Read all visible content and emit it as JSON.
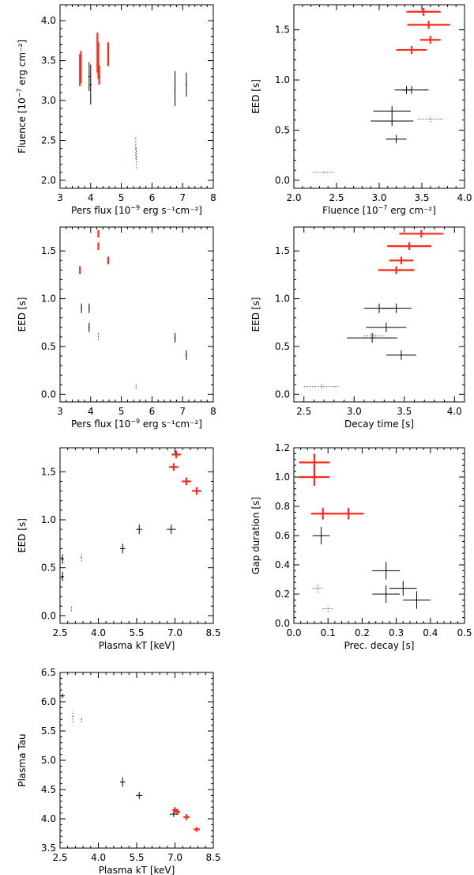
{
  "colors": {
    "red": "#ff2a1a",
    "black": "#000000",
    "blue": "#3a4bd8"
  },
  "chart_data": [
    {
      "type": "scatter",
      "title": "",
      "xlabel_main": "Pers flux ",
      "xlabel_unit_open": "[10",
      "xlabel_exp": "−9",
      "xlabel_unit_rest": " erg s⁻¹cm⁻²]",
      "ylabel_main": "Fluence ",
      "ylabel_unit_open": "[10",
      "ylabel_exp": "−7",
      "ylabel_unit_rest": " erg cm⁻²]",
      "xlim": [
        3,
        8
      ],
      "ylim": [
        1.9,
        4.2
      ],
      "xticks": [
        "3",
        "4",
        "5",
        "6",
        "7",
        "8"
      ],
      "xtick_values": [
        3,
        4,
        5,
        6,
        7,
        8
      ],
      "yticks": [
        "2.0",
        "2.5",
        "3.0",
        "3.5",
        "4.0"
      ],
      "ytick_values": [
        2.0,
        2.5,
        3.0,
        3.5,
        4.0
      ],
      "series": [
        {
          "name": "red",
          "color": "red",
          "style": "solid",
          "width": 2.2,
          "points": [
            {
              "x": 3.65,
              "y": 3.38,
              "xerr": 0.02,
              "yerr": 0.2
            },
            {
              "x": 3.68,
              "y": 3.42,
              "xerr": 0.02,
              "yerr": 0.2
            },
            {
              "x": 4.22,
              "y": 3.6,
              "xerr": 0.02,
              "yerr": 0.25
            },
            {
              "x": 4.25,
              "y": 3.5,
              "xerr": 0.02,
              "yerr": 0.23
            },
            {
              "x": 4.28,
              "y": 3.32,
              "xerr": 0.02,
              "yerr": 0.12
            },
            {
              "x": 4.57,
              "y": 3.58,
              "xerr": 0.02,
              "yerr": 0.15
            }
          ]
        },
        {
          "name": "black",
          "color": "black",
          "style": "solid",
          "width": 1,
          "points": [
            {
              "x": 3.95,
              "y": 3.3,
              "xerr": 0.03,
              "yerr": 0.18
            },
            {
              "x": 4.0,
              "y": 3.2,
              "xerr": 0.03,
              "yerr": 0.25
            },
            {
              "x": 6.75,
              "y": 3.15,
              "xerr": 0.02,
              "yerr": 0.22
            },
            {
              "x": 7.12,
              "y": 3.2,
              "xerr": 0.02,
              "yerr": 0.15
            }
          ]
        },
        {
          "name": "blue",
          "color": "blue",
          "style": "dotted",
          "width": 1,
          "points": [
            {
              "x": 5.47,
              "y": 2.4,
              "xerr": 0.01,
              "yerr": 0.13
            },
            {
              "x": 5.49,
              "y": 2.28,
              "xerr": 0.01,
              "yerr": 0.13
            }
          ]
        }
      ]
    },
    {
      "type": "scatter",
      "title": "",
      "xlabel_main": "Fluence ",
      "xlabel_unit_open": "[10",
      "xlabel_exp": "−7",
      "xlabel_unit_rest": " erg cm⁻²]",
      "ylabel_main": "EED [s]",
      "ylabel_unit_open": "",
      "ylabel_exp": "",
      "ylabel_unit_rest": "",
      "xlim": [
        2.0,
        4.0
      ],
      "ylim": [
        -0.08,
        1.75
      ],
      "xticks": [
        "2.0",
        "2.5",
        "3.0",
        "3.5",
        "4.0"
      ],
      "xtick_values": [
        2.0,
        2.5,
        3.0,
        3.5,
        4.0
      ],
      "yticks": [
        "0.0",
        "0.5",
        "1.0",
        "1.5"
      ],
      "ytick_values": [
        0.0,
        0.5,
        1.0,
        1.5
      ],
      "series": [
        {
          "name": "red",
          "color": "red",
          "style": "solid",
          "width": 2.2,
          "points": [
            {
              "x": 3.52,
              "y": 1.68,
              "xerr": 0.2,
              "yerr": 0.04
            },
            {
              "x": 3.58,
              "y": 1.55,
              "xerr": 0.25,
              "yerr": 0.04
            },
            {
              "x": 3.6,
              "y": 1.4,
              "xerr": 0.12,
              "yerr": 0.04
            },
            {
              "x": 3.38,
              "y": 1.3,
              "xerr": 0.18,
              "yerr": 0.04
            }
          ]
        },
        {
          "name": "black",
          "color": "black",
          "style": "solid",
          "width": 1,
          "points": [
            {
              "x": 3.32,
              "y": 0.9,
              "xerr": 0.05,
              "yerr": 0.04
            },
            {
              "x": 3.38,
              "y": 0.9,
              "xerr": 0.2,
              "yerr": 0.04
            },
            {
              "x": 3.15,
              "y": 0.69,
              "xerr": 0.22,
              "yerr": 0.05
            },
            {
              "x": 3.15,
              "y": 0.59,
              "xerr": 0.25,
              "yerr": 0.05
            },
            {
              "x": 3.2,
              "y": 0.41,
              "xerr": 0.12,
              "yerr": 0.04
            }
          ]
        },
        {
          "name": "blue",
          "color": "blue",
          "style": "dotted",
          "width": 1,
          "points": [
            {
              "x": 3.6,
              "y": 0.61,
              "xerr": 0.15,
              "yerr": 0.03
            },
            {
              "x": 2.35,
              "y": 0.08,
              "xerr": 0.13,
              "yerr": 0.01
            }
          ]
        }
      ]
    },
    {
      "type": "scatter",
      "title": "",
      "xlabel_main": "Pers flux ",
      "xlabel_unit_open": "[10",
      "xlabel_exp": "−9",
      "xlabel_unit_rest": " erg s⁻¹cm⁻²]",
      "ylabel_main": "EED [s]",
      "ylabel_unit_open": "",
      "ylabel_exp": "",
      "ylabel_unit_rest": "",
      "xlim": [
        3,
        8
      ],
      "ylim": [
        -0.08,
        1.75
      ],
      "xticks": [
        "3",
        "4",
        "5",
        "6",
        "7",
        "8"
      ],
      "xtick_values": [
        3,
        4,
        5,
        6,
        7,
        8
      ],
      "yticks": [
        "0.0",
        "0.5",
        "1.0",
        "1.5"
      ],
      "ytick_values": [
        0.0,
        0.5,
        1.0,
        1.5
      ],
      "series": [
        {
          "name": "red",
          "color": "red",
          "style": "solid",
          "width": 2.2,
          "points": [
            {
              "x": 4.25,
              "y": 1.68,
              "xerr": 0.02,
              "yerr": 0.04
            },
            {
              "x": 4.25,
              "y": 1.55,
              "xerr": 0.02,
              "yerr": 0.04
            },
            {
              "x": 4.57,
              "y": 1.4,
              "xerr": 0.02,
              "yerr": 0.04
            },
            {
              "x": 3.65,
              "y": 1.3,
              "xerr": 0.02,
              "yerr": 0.04
            }
          ]
        },
        {
          "name": "black",
          "color": "black",
          "style": "solid",
          "width": 1,
          "points": [
            {
              "x": 3.7,
              "y": 0.9,
              "xerr": 0.02,
              "yerr": 0.05
            },
            {
              "x": 3.95,
              "y": 0.9,
              "xerr": 0.02,
              "yerr": 0.05
            },
            {
              "x": 3.95,
              "y": 0.7,
              "xerr": 0.02,
              "yerr": 0.05
            },
            {
              "x": 6.75,
              "y": 0.59,
              "xerr": 0.02,
              "yerr": 0.05
            },
            {
              "x": 7.12,
              "y": 0.41,
              "xerr": 0.02,
              "yerr": 0.05
            }
          ]
        },
        {
          "name": "blue",
          "color": "blue",
          "style": "dotted",
          "width": 1,
          "points": [
            {
              "x": 4.25,
              "y": 0.61,
              "xerr": 0.01,
              "yerr": 0.04
            },
            {
              "x": 5.48,
              "y": 0.08,
              "xerr": 0.01,
              "yerr": 0.02
            }
          ]
        }
      ]
    },
    {
      "type": "scatter",
      "title": "",
      "xlabel_main": "Decay time [s]",
      "xlabel_unit_open": "",
      "xlabel_exp": "",
      "xlabel_unit_rest": "",
      "ylabel_main": "EED [s]",
      "ylabel_unit_open": "",
      "ylabel_exp": "",
      "ylabel_unit_rest": "",
      "xlim": [
        2.4,
        4.1
      ],
      "ylim": [
        -0.08,
        1.75
      ],
      "xticks": [
        "2.5",
        "3.0",
        "3.5",
        "4.0"
      ],
      "xtick_values": [
        2.5,
        3.0,
        3.5,
        4.0
      ],
      "yticks": [
        "0.0",
        "0.5",
        "1.0",
        "1.5"
      ],
      "ytick_values": [
        0.0,
        0.5,
        1.0,
        1.5
      ],
      "series": [
        {
          "name": "red",
          "color": "red",
          "style": "solid",
          "width": 2.2,
          "points": [
            {
              "x": 3.67,
              "y": 1.68,
              "xerr": 0.22,
              "yerr": 0.04
            },
            {
              "x": 3.55,
              "y": 1.55,
              "xerr": 0.22,
              "yerr": 0.04
            },
            {
              "x": 3.47,
              "y": 1.4,
              "xerr": 0.12,
              "yerr": 0.04
            },
            {
              "x": 3.42,
              "y": 1.3,
              "xerr": 0.18,
              "yerr": 0.04
            }
          ]
        },
        {
          "name": "black",
          "color": "black",
          "style": "solid",
          "width": 1,
          "points": [
            {
              "x": 3.25,
              "y": 0.9,
              "xerr": 0.15,
              "yerr": 0.05
            },
            {
              "x": 3.42,
              "y": 0.9,
              "xerr": 0.15,
              "yerr": 0.05
            },
            {
              "x": 3.32,
              "y": 0.7,
              "xerr": 0.2,
              "yerr": 0.05
            },
            {
              "x": 3.18,
              "y": 0.59,
              "xerr": 0.25,
              "yerr": 0.05
            },
            {
              "x": 3.47,
              "y": 0.41,
              "xerr": 0.15,
              "yerr": 0.05
            }
          ]
        },
        {
          "name": "blue",
          "color": "blue",
          "style": "dotted",
          "width": 1,
          "points": [
            {
              "x": 3.2,
              "y": 0.61,
              "xerr": 0.1,
              "yerr": 0.02
            },
            {
              "x": 2.68,
              "y": 0.08,
              "xerr": 0.18,
              "yerr": 0.02
            }
          ]
        }
      ]
    },
    {
      "type": "scatter",
      "title": "",
      "xlabel_main": "Plasma kT [keV]",
      "xlabel_unit_open": "",
      "xlabel_exp": "",
      "xlabel_unit_rest": "",
      "ylabel_main": "EED [s]",
      "ylabel_unit_open": "",
      "ylabel_exp": "",
      "ylabel_unit_rest": "",
      "xlim": [
        2.5,
        8.5
      ],
      "ylim": [
        -0.08,
        1.75
      ],
      "xticks": [
        "2.5",
        "4.0",
        "5.5",
        "7.0",
        "8.5"
      ],
      "xtick_values": [
        2.5,
        4.0,
        5.5,
        7.0,
        8.5
      ],
      "yticks": [
        "0.0",
        "0.5",
        "1.0",
        "1.5"
      ],
      "ytick_values": [
        0.0,
        0.5,
        1.0,
        1.5
      ],
      "series": [
        {
          "name": "red",
          "color": "red",
          "style": "solid",
          "width": 2.2,
          "points": [
            {
              "x": 7.05,
              "y": 1.68,
              "xerr": 0.18,
              "yerr": 0.04
            },
            {
              "x": 6.95,
              "y": 1.55,
              "xerr": 0.18,
              "yerr": 0.04
            },
            {
              "x": 7.45,
              "y": 1.4,
              "xerr": 0.18,
              "yerr": 0.04
            },
            {
              "x": 7.85,
              "y": 1.3,
              "xerr": 0.18,
              "yerr": 0.04
            }
          ]
        },
        {
          "name": "black",
          "color": "black",
          "style": "solid",
          "width": 1,
          "points": [
            {
              "x": 5.6,
              "y": 0.9,
              "xerr": 0.12,
              "yerr": 0.05
            },
            {
              "x": 6.85,
              "y": 0.9,
              "xerr": 0.18,
              "yerr": 0.05
            },
            {
              "x": 4.95,
              "y": 0.7,
              "xerr": 0.1,
              "yerr": 0.05
            },
            {
              "x": 2.6,
              "y": 0.59,
              "xerr": 0.05,
              "yerr": 0.05
            },
            {
              "x": 2.6,
              "y": 0.41,
              "xerr": 0.05,
              "yerr": 0.05
            }
          ]
        },
        {
          "name": "blue",
          "color": "blue",
          "style": "dotted",
          "width": 1,
          "points": [
            {
              "x": 3.35,
              "y": 0.61,
              "xerr": 0.05,
              "yerr": 0.04
            },
            {
              "x": 2.95,
              "y": 0.08,
              "xerr": 0.03,
              "yerr": 0.03
            }
          ]
        }
      ]
    },
    {
      "type": "scatter",
      "title": "",
      "xlabel_main": "Prec. decay [s]",
      "xlabel_unit_open": "",
      "xlabel_exp": "",
      "xlabel_unit_rest": "",
      "ylabel_main": "Gap duration [s]",
      "ylabel_unit_open": "",
      "ylabel_exp": "",
      "ylabel_unit_rest": "",
      "xlim": [
        0.0,
        0.5
      ],
      "ylim": [
        0.0,
        1.2
      ],
      "xticks": [
        "0.0",
        "0.1",
        "0.2",
        "0.3",
        "0.4",
        "0.5"
      ],
      "xtick_values": [
        0.0,
        0.1,
        0.2,
        0.3,
        0.4,
        0.5
      ],
      "yticks": [
        "0.0",
        "0.2",
        "0.4",
        "0.6",
        "0.8",
        "1.0",
        "1.2"
      ],
      "ytick_values": [
        0.0,
        0.2,
        0.4,
        0.6,
        0.8,
        1.0,
        1.2
      ],
      "series": [
        {
          "name": "red",
          "color": "red",
          "style": "solid",
          "width": 2.2,
          "points": [
            {
              "x": 0.06,
              "y": 1.1,
              "xerr": 0.045,
              "yerr": 0.06
            },
            {
              "x": 0.06,
              "y": 1.0,
              "xerr": 0.045,
              "yerr": 0.06
            },
            {
              "x": 0.085,
              "y": 0.75,
              "xerr": 0.035,
              "yerr": 0.04
            },
            {
              "x": 0.16,
              "y": 0.75,
              "xerr": 0.045,
              "yerr": 0.04
            }
          ]
        },
        {
          "name": "black",
          "color": "black",
          "style": "solid",
          "width": 1,
          "points": [
            {
              "x": 0.08,
              "y": 0.6,
              "xerr": 0.025,
              "yerr": 0.06
            },
            {
              "x": 0.27,
              "y": 0.36,
              "xerr": 0.04,
              "yerr": 0.06
            },
            {
              "x": 0.27,
              "y": 0.2,
              "xerr": 0.04,
              "yerr": 0.06
            },
            {
              "x": 0.32,
              "y": 0.24,
              "xerr": 0.04,
              "yerr": 0.05
            },
            {
              "x": 0.36,
              "y": 0.16,
              "xerr": 0.04,
              "yerr": 0.06
            }
          ]
        },
        {
          "name": "blue",
          "color": "blue",
          "style": "dotted",
          "width": 1,
          "points": [
            {
              "x": 0.07,
              "y": 0.24,
              "xerr": 0.015,
              "yerr": 0.03
            },
            {
              "x": 0.1,
              "y": 0.1,
              "xerr": 0.015,
              "yerr": 0.02
            }
          ]
        }
      ]
    },
    {
      "type": "scatter",
      "title": "",
      "xlabel_main": "Plasma kT [keV]",
      "xlabel_unit_open": "",
      "xlabel_exp": "",
      "xlabel_unit_rest": "",
      "ylabel_main": "Plasma Tau",
      "ylabel_unit_open": "",
      "ylabel_exp": "",
      "ylabel_unit_rest": "",
      "xlim": [
        2.5,
        8.5
      ],
      "ylim": [
        3.5,
        6.5
      ],
      "xticks": [
        "2.5",
        "4.0",
        "5.5",
        "7.0",
        "8.5"
      ],
      "xtick_values": [
        2.5,
        4.0,
        5.5,
        7.0,
        8.5
      ],
      "yticks": [
        "3.5",
        "4.0",
        "4.5",
        "5.0",
        "5.5",
        "6.0",
        "6.5"
      ],
      "ytick_values": [
        3.5,
        4.0,
        4.5,
        5.0,
        5.5,
        6.0,
        6.5
      ],
      "series": [
        {
          "name": "red",
          "color": "red",
          "style": "solid",
          "width": 2.2,
          "points": [
            {
              "x": 7.0,
              "y": 4.15,
              "xerr": 0.1,
              "yerr": 0.05
            },
            {
              "x": 7.1,
              "y": 4.12,
              "xerr": 0.1,
              "yerr": 0.05
            },
            {
              "x": 7.45,
              "y": 4.03,
              "xerr": 0.12,
              "yerr": 0.05
            },
            {
              "x": 7.85,
              "y": 3.82,
              "xerr": 0.12,
              "yerr": 0.04
            }
          ]
        },
        {
          "name": "black",
          "color": "black",
          "style": "solid",
          "width": 1,
          "points": [
            {
              "x": 2.6,
              "y": 6.1,
              "xerr": 0.08,
              "yerr": 0.04
            },
            {
              "x": 4.95,
              "y": 4.63,
              "xerr": 0.1,
              "yerr": 0.08
            },
            {
              "x": 5.6,
              "y": 4.4,
              "xerr": 0.12,
              "yerr": 0.06
            },
            {
              "x": 6.95,
              "y": 4.08,
              "xerr": 0.15,
              "yerr": 0.05
            }
          ]
        },
        {
          "name": "blue",
          "color": "blue",
          "style": "dotted",
          "width": 1,
          "points": [
            {
              "x": 3.0,
              "y": 5.75,
              "xerr": 0.03,
              "yerr": 0.1
            },
            {
              "x": 3.35,
              "y": 5.7,
              "xerr": 0.03,
              "yerr": 0.05
            }
          ]
        }
      ]
    }
  ]
}
